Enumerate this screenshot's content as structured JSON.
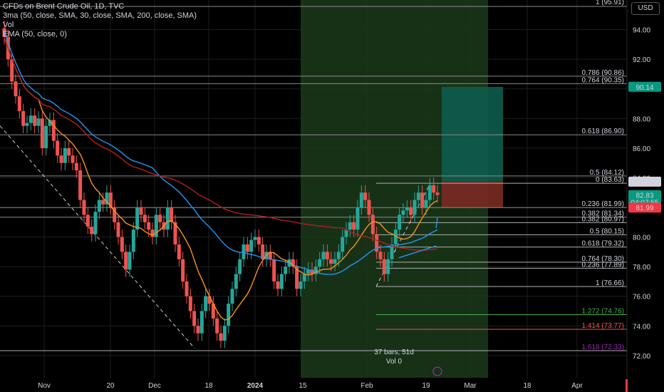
{
  "legend": {
    "title": "CFDs on Brent Crude Oil, 1D, TVC",
    "ma": "3ma (50, close, SMA, 30, close, SMA, 200, close, SMA)",
    "vol": "Vol",
    "ema": "EMA (50, close, 0)"
  },
  "currency_button": "USD",
  "colors": {
    "up": "#26a69a",
    "down": "#ef5350",
    "ma50": "#f7931a",
    "ma30": "#2196f3",
    "ma200": "#b71c1c",
    "ema": "#2196f3",
    "zone": "#1b3a1b",
    "profit": "#0e5c4d",
    "loss": "#7a2a22"
  },
  "price_axis": {
    "ticks": [
      "94.00",
      "92.00",
      "90.00",
      "88.00",
      "86.00",
      "84.00",
      "82.00",
      "80.00",
      "78.00",
      "76.00",
      "74.00",
      "72.00"
    ],
    "tick_values": [
      94,
      92,
      90,
      88,
      86,
      84,
      82,
      80,
      78,
      76,
      74,
      72
    ],
    "top_partial": "1 (95.91)"
  },
  "time_axis": {
    "labels": [
      "Nov",
      "20",
      "Dec",
      "18",
      "2024",
      "15",
      "Feb",
      "19",
      "Mar",
      "18",
      "Apr"
    ]
  },
  "price_labels": {
    "target": "90.14",
    "entry": "83.74",
    "last": "82.83",
    "countdown": "04:07:55",
    "stop": "81.99"
  },
  "fib_upper": [
    {
      "label": "0.786 (90.86)",
      "value": 90.86
    },
    {
      "label": "0.764 (90.35)",
      "value": 90.35
    },
    {
      "label": "0.618 (86.90)",
      "value": 86.9
    },
    {
      "label": "0.5 (84.12)",
      "value": 84.12
    },
    {
      "label": "0.236 (81.99)",
      "value": 81.99
    },
    {
      "label": "0.382 (81.34)",
      "value": 81.34
    }
  ],
  "fib_lower": [
    {
      "label": "0 (83.63)",
      "value": 83.63
    },
    {
      "label": "0.382 (80.97)",
      "value": 80.97
    },
    {
      "label": "0.5 (80.15)",
      "value": 80.15
    },
    {
      "label": "0.618 (79.32)",
      "value": 79.32
    },
    {
      "label": "0.764 (78.30)",
      "value": 78.3
    },
    {
      "label": "0.236 (77.89)",
      "value": 77.89
    },
    {
      "label": "1 (76.66)",
      "value": 76.66
    },
    {
      "label": "1.272 (74.76)",
      "value": 74.76
    },
    {
      "label": "1.414 (73.77)",
      "value": 73.77
    },
    {
      "label": "1.618 (72.33)",
      "value": 72.33
    }
  ],
  "bars_info": "37 bars, 51d",
  "vol_info": "Vol 0",
  "chart_data": {
    "type": "line",
    "ylim": [
      70.5,
      96
    ],
    "series": [
      {
        "name": "CFDs on Brent Crude Oil, 1D, TVC",
        "kind": "candlestick",
        "close": [
          93.5,
          92,
          90.5,
          89.5,
          88.5,
          87.5,
          87.7,
          88.2,
          87.5,
          88,
          86,
          87.5,
          87.9,
          86.5,
          85.5,
          85,
          86,
          85.5,
          85,
          84.5,
          82.5,
          81.5,
          80.7,
          80.2,
          81.7,
          82.5,
          82.2,
          83,
          82,
          81,
          80,
          79,
          77.8,
          79,
          80.5,
          82,
          81.5,
          81,
          80.5,
          80,
          81.5,
          81,
          80.5,
          82,
          81,
          79.5,
          78.5,
          77,
          76,
          75,
          74,
          73.5,
          75,
          76,
          75.5,
          74.5,
          73.5,
          73,
          74,
          75.5,
          76.5,
          77.5,
          78.5,
          79.5,
          79,
          79.8,
          80,
          79.5,
          78.5,
          79,
          78.5,
          77,
          76.5,
          77.5,
          78,
          78.5,
          78,
          76.5,
          77,
          77.5,
          77.8,
          77.5,
          78,
          78.5,
          79,
          78.5,
          78.2,
          78.5,
          79,
          80,
          80.5,
          81,
          80.5,
          82,
          83,
          82.5,
          81.5,
          80.2,
          79,
          78.5,
          77.5,
          78.5,
          79.5,
          80.5,
          81.5,
          81.8,
          82,
          81.5,
          82.5,
          83,
          82,
          82.5,
          83.5,
          83,
          82.83
        ]
      }
    ]
  }
}
